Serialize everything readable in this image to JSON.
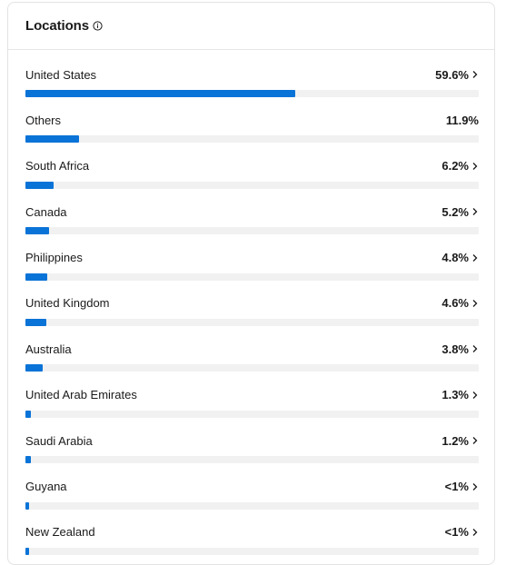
{
  "header": {
    "title": "Locations",
    "info_icon": "info-icon"
  },
  "colors": {
    "bar_fill": "#0a73d7",
    "bar_track": "#f1f1f1"
  },
  "locations": [
    {
      "name": "United States",
      "value": "59.6%",
      "share": 59.6,
      "clickable": true
    },
    {
      "name": "Others",
      "value": "11.9%",
      "share": 11.9,
      "clickable": false
    },
    {
      "name": "South Africa",
      "value": "6.2%",
      "share": 6.2,
      "clickable": true
    },
    {
      "name": "Canada",
      "value": "5.2%",
      "share": 5.2,
      "clickable": true
    },
    {
      "name": "Philippines",
      "value": "4.8%",
      "share": 4.8,
      "clickable": true
    },
    {
      "name": "United Kingdom",
      "value": "4.6%",
      "share": 4.6,
      "clickable": true
    },
    {
      "name": "Australia",
      "value": "3.8%",
      "share": 3.8,
      "clickable": true
    },
    {
      "name": "United Arab Emirates",
      "value": "1.3%",
      "share": 1.3,
      "clickable": true
    },
    {
      "name": "Saudi Arabia",
      "value": "1.2%",
      "share": 1.2,
      "clickable": true
    },
    {
      "name": "Guyana",
      "value": "<1%",
      "share": 0.8,
      "clickable": true
    },
    {
      "name": "New Zealand",
      "value": "<1%",
      "share": 0.8,
      "clickable": true
    }
  ]
}
